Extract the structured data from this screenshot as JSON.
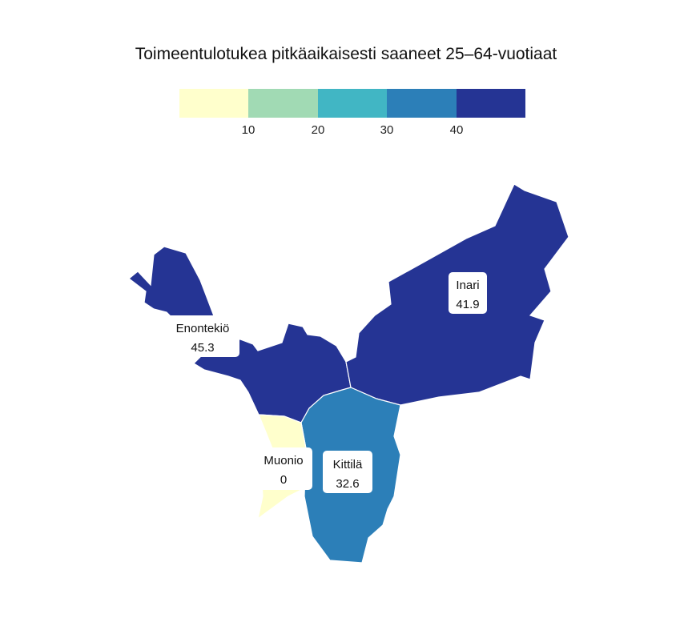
{
  "title": "Toimeentulotukea pitkäaikaisesti saaneet 25–64-vuotiaat",
  "legend": {
    "colors": [
      "#ffffcc",
      "#a1dab4",
      "#41b6c4",
      "#2c7fb8",
      "#253494"
    ],
    "ticks": [
      "10",
      "20",
      "30",
      "40"
    ],
    "breaks": [
      10,
      20,
      30,
      40
    ]
  },
  "regions": [
    {
      "name": "Enontekiö",
      "value": "45.3",
      "color": "#253494"
    },
    {
      "name": "Inari",
      "value": "41.9",
      "color": "#253494"
    },
    {
      "name": "Kittilä",
      "value": "32.6",
      "color": "#2c7fb8"
    },
    {
      "name": "Muonio",
      "value": "0",
      "color": "#ffffcc"
    }
  ]
}
